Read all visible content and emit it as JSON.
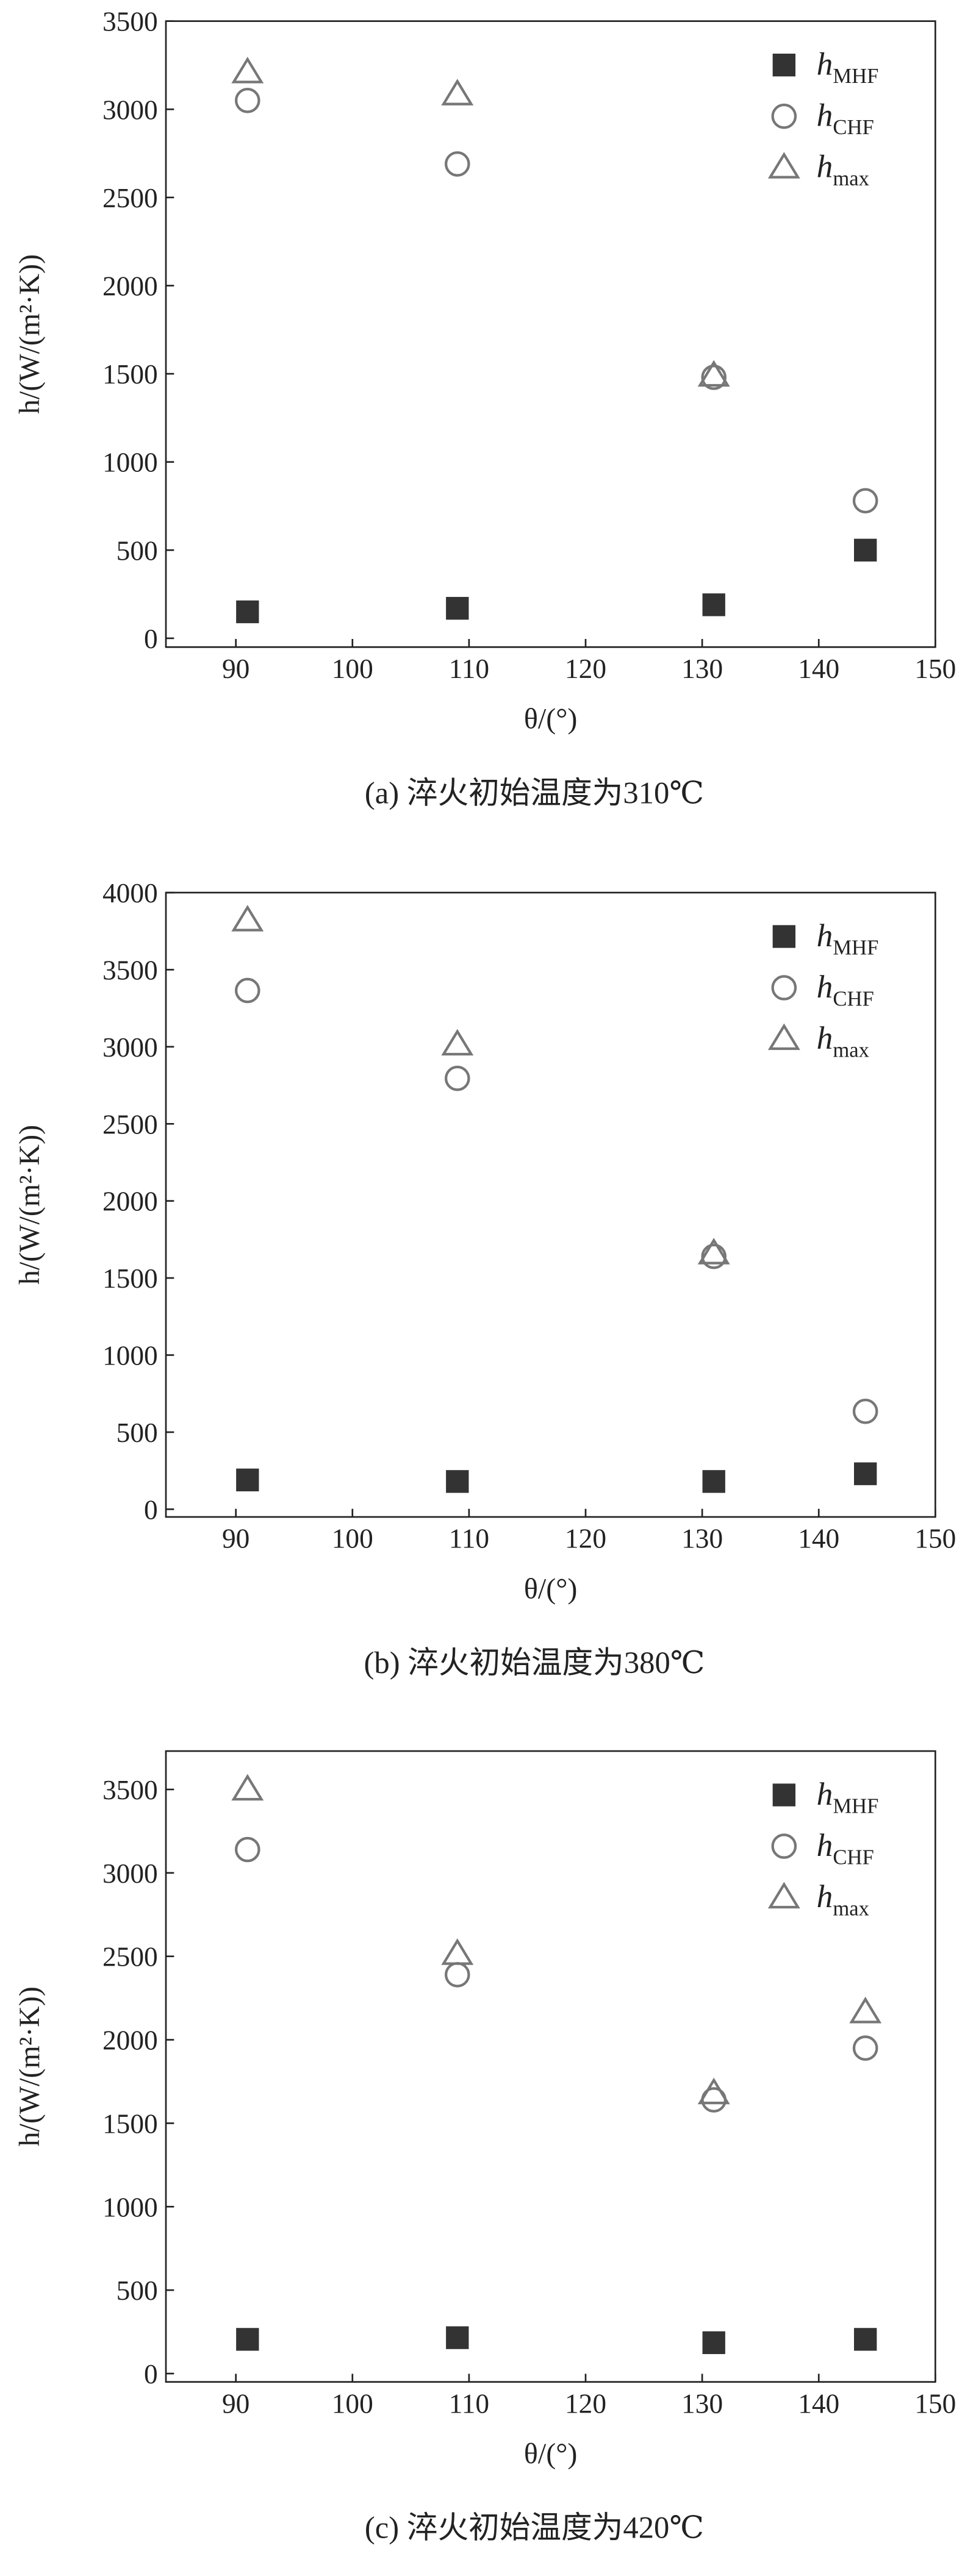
{
  "chart_data": [
    {
      "type": "scatter",
      "caption": "(a) 淬火初始温度为310℃",
      "xlabel": "θ/(°)",
      "ylabel": "h/(W/(m²·K))",
      "x": [
        91,
        109,
        131,
        144
      ],
      "xlim": [
        84,
        150
      ],
      "xticks": [
        90,
        100,
        110,
        120,
        130,
        140,
        150
      ],
      "ylim": [
        -50,
        3500
      ],
      "yticks": [
        0,
        500,
        1000,
        1500,
        2000,
        2500,
        3000,
        3500
      ],
      "legend": "upper right",
      "series": [
        {
          "name": "h",
          "subscript": "MHF",
          "marker": "square",
          "color": "#333333",
          "values": [
            150,
            170,
            190,
            500
          ]
        },
        {
          "name": "h",
          "subscript": "CHF",
          "marker": "circle",
          "color": "#777777",
          "values": [
            3050,
            2690,
            1480,
            780
          ]
        },
        {
          "name": "h",
          "subscript": "max",
          "marker": "triangle",
          "color": "#777777",
          "values": [
            3210,
            3085,
            1490,
            null
          ]
        }
      ]
    },
    {
      "type": "scatter",
      "caption": "(b) 淬火初始温度为380℃",
      "xlabel": "θ/(°)",
      "ylabel": "h/(W/(m²·K))",
      "x": [
        91,
        109,
        131,
        144
      ],
      "xlim": [
        84,
        150
      ],
      "xticks": [
        90,
        100,
        110,
        120,
        130,
        140,
        150
      ],
      "ylim": [
        -50,
        4000
      ],
      "yticks": [
        0,
        500,
        1000,
        1500,
        2000,
        2500,
        3000,
        3500,
        4000
      ],
      "legend": "upper right",
      "series": [
        {
          "name": "h",
          "subscript": "MHF",
          "marker": "square",
          "color": "#333333",
          "values": [
            190,
            180,
            180,
            230
          ]
        },
        {
          "name": "h",
          "subscript": "CHF",
          "marker": "circle",
          "color": "#777777",
          "values": [
            3365,
            2795,
            1640,
            635
          ]
        },
        {
          "name": "h",
          "subscript": "max",
          "marker": "triangle",
          "color": "#777777",
          "values": [
            3820,
            3015,
            1660,
            null
          ]
        }
      ]
    },
    {
      "type": "scatter",
      "caption": "(c) 淬火初始温度为420℃",
      "xlabel": "θ/(°)",
      "ylabel": "h/(W/(m²·K))",
      "x": [
        91,
        109,
        131,
        144
      ],
      "xlim": [
        84,
        150
      ],
      "xticks": [
        90,
        100,
        110,
        120,
        130,
        140,
        150
      ],
      "ylim": [
        -50,
        3730
      ],
      "yticks": [
        0,
        500,
        1000,
        1500,
        2000,
        2500,
        3000,
        3500
      ],
      "legend": "upper right",
      "series": [
        {
          "name": "h",
          "subscript": "MHF",
          "marker": "square",
          "color": "#333333",
          "values": [
            205,
            215,
            185,
            205
          ]
        },
        {
          "name": "h",
          "subscript": "CHF",
          "marker": "circle",
          "color": "#777777",
          "values": [
            3140,
            2390,
            1640,
            1950
          ]
        },
        {
          "name": "h",
          "subscript": "max",
          "marker": "triangle",
          "color": "#777777",
          "values": [
            3500,
            2515,
            1680,
            2165
          ]
        }
      ]
    }
  ]
}
